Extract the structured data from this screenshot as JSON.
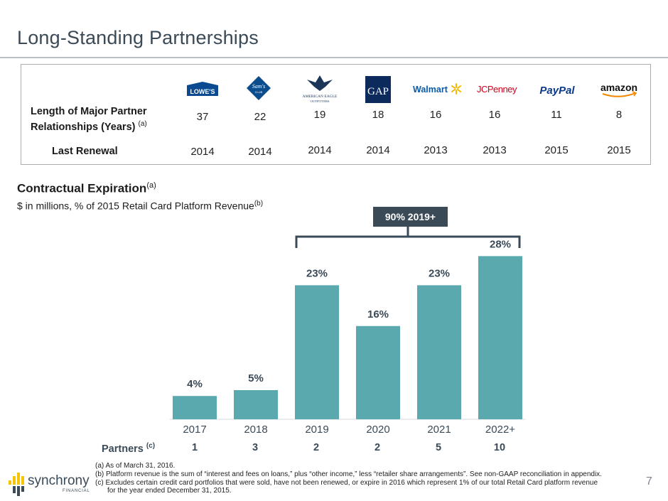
{
  "slide": {
    "title": "Long-Standing Partnerships",
    "page_number": "7"
  },
  "partners_table": {
    "row1_label_line1": "Length of Major Partner",
    "row1_label_line2": "Relationships (Years)",
    "row1_note": "(a)",
    "row2_label": "Last Renewal",
    "partners": [
      {
        "logo": "LOWE'S",
        "years": "37",
        "renewal": "2014"
      },
      {
        "logo": "Sam's",
        "logo_sub": "CLUB",
        "years": "22",
        "renewal": "2014"
      },
      {
        "logo": "AMERICAN EAGLE",
        "logo_sub": "OUTFITTERS",
        "years": "19",
        "renewal": "2014"
      },
      {
        "logo": "GAP",
        "years": "18",
        "renewal": "2014"
      },
      {
        "logo": "Walmart",
        "years": "16",
        "renewal": "2013"
      },
      {
        "logo": "JCPenney",
        "years": "16",
        "renewal": "2013"
      },
      {
        "logo": "PayPal",
        "years": "11",
        "renewal": "2015"
      },
      {
        "logo": "amazon",
        "years": "8",
        "renewal": "2015"
      }
    ]
  },
  "section": {
    "title": "Contractual Expiration",
    "title_note": "(a)",
    "subtitle": "$ in millions, % of 2015 Retail Card Platform Revenue",
    "subtitle_note": "(b)",
    "callout": "90% 2019+"
  },
  "chart_data": {
    "type": "bar",
    "categories": [
      "2017",
      "2018",
      "2019",
      "2020",
      "2021",
      "2022+"
    ],
    "values": [
      4,
      5,
      23,
      16,
      23,
      28
    ],
    "value_labels": [
      "4%",
      "5%",
      "23%",
      "16%",
      "23%",
      "28%"
    ],
    "ylim": [
      0,
      28
    ],
    "bar_color": "#5aa9ae",
    "grid": false
  },
  "partners_row": {
    "label": "Partners",
    "note": "(c)",
    "counts": [
      "1",
      "3",
      "2",
      "2",
      "5",
      "10"
    ]
  },
  "footnotes": {
    "a": "(a) As of March 31, 2016.",
    "b": "(b) Platform revenue is the sum of “interest and fees on loans,” plus “other income,” less “retailer share arrangements”.  See non-GAAP reconciliation in appendix.",
    "c": "(c) Excludes certain credit card portfolios that were sold, have not been renewed, or expire in 2016 which represent 1% of our total Retail Card platform revenue",
    "c2": "for the year ended December 31, 2015."
  },
  "brand": {
    "name": "synchrony",
    "sub": "FINANCIAL"
  },
  "colors": {
    "title": "#3b4a57",
    "bar": "#5aa9ae",
    "callout_bg": "#3b4a57",
    "brand_yellow": "#f6c400"
  }
}
